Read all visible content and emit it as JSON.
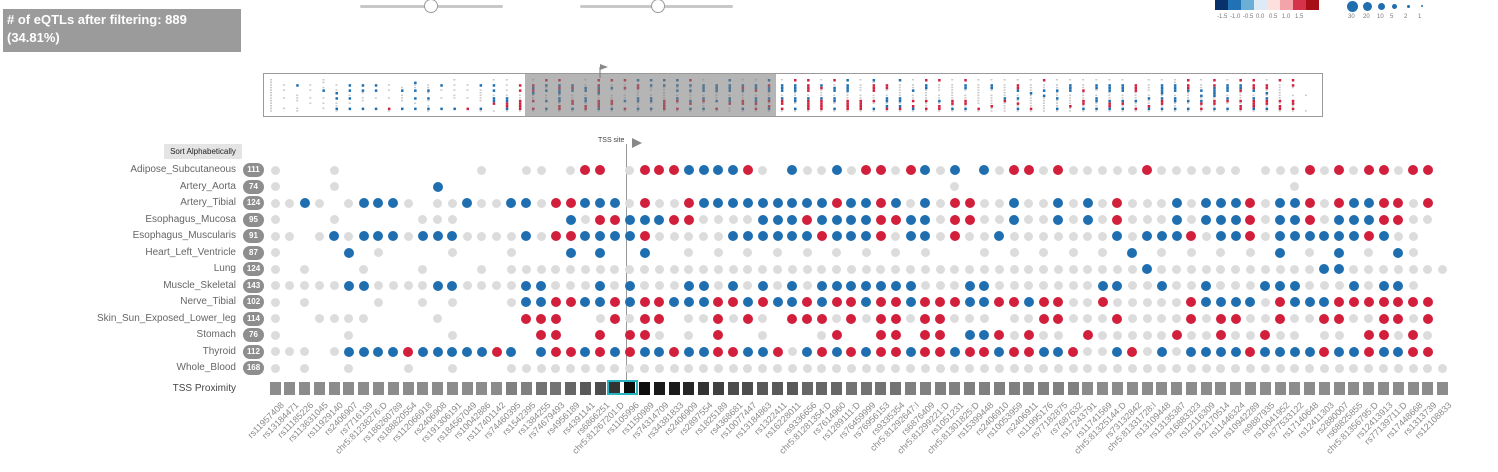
{
  "filter_summary": {
    "line1": "# of eQTLs after filtering: 889",
    "line2": "(34.81%)"
  },
  "sliders": [
    {
      "name": "range-slider-1",
      "value_fraction": 0.5
    },
    {
      "name": "range-slider-2",
      "value_fraction": 0.58
    }
  ],
  "color_legend": {
    "colors": [
      "#08306b",
      "#2171b5",
      "#6baed6",
      "#deebf7",
      "#fde0dd",
      "#f4a3a8",
      "#d6324a",
      "#a50f15"
    ],
    "ticks": [
      "-1.5",
      "-1.0",
      "-0.5",
      "0.0",
      "0.5",
      "1.0",
      "1.5"
    ]
  },
  "size_legend": {
    "labels": [
      "30",
      "20",
      "10",
      "5",
      "2",
      "1"
    ]
  },
  "sort_button_label": "Sort Alphabetically",
  "tss_label": "TSS site",
  "tss_row_label": "TSS Proximity",
  "tissues": [
    {
      "name": "Adipose_Subcutaneous",
      "count": "111"
    },
    {
      "name": "Artery_Aorta",
      "count": "74"
    },
    {
      "name": "Artery_Tibial",
      "count": "124"
    },
    {
      "name": "Esophagus_Mucosa",
      "count": "95"
    },
    {
      "name": "Esophagus_Muscularis",
      "count": "91"
    },
    {
      "name": "Heart_Left_Ventricle",
      "count": "87"
    },
    {
      "name": "Lung",
      "count": "124"
    },
    {
      "name": "Muscle_Skeletal",
      "count": "143"
    },
    {
      "name": "Nerve_Tibial",
      "count": "102"
    },
    {
      "name": "Skin_Sun_Exposed_Lower_leg",
      "count": "114"
    },
    {
      "name": "Stomach",
      "count": "76"
    },
    {
      "name": "Thyroid",
      "count": "112"
    },
    {
      "name": "Whole_Blood",
      "count": "168"
    }
  ],
  "snps": [
    "rs11957408",
    "rs13184471",
    "rs11185226",
    "rs113631045",
    "rs11929140",
    "rs2406907",
    "rs7716139",
    "chr5:81238276:D",
    "rs186260789",
    "rs188820554",
    "rs112066918",
    "rs2406908",
    "rs191306191",
    "rs184567049",
    "rs10042886",
    "rs117401142",
    "rs74460395",
    "rs1542395",
    "rs1384255",
    "rs74679493",
    "rs4956189",
    "rs4391141",
    "rs6866251",
    "chr5:81267201:D",
    "rs1105996",
    "rs1150989",
    "rs74314709",
    "rs34381833",
    "rs2406909",
    "rs2897554",
    "rs1825189",
    "rs4368681",
    "rs10077447",
    "rs13184863",
    "rs1322411",
    "rs16228011",
    "rs9336656",
    "chr5:81281354:D",
    "rs7614960",
    "rs1289111:D",
    "rs76459999",
    "rs76956153",
    "rs9335354",
    "chr5:81292647:I",
    "rs6876409",
    "chr5:81299221:D",
    "rs1051231",
    "chr5:81301825:D",
    "rs15399448",
    "rs2406910",
    "rs10053959",
    "rs2406911",
    "rs11995176",
    "rs77182875",
    "rs7687632",
    "rs17243791",
    "rs11741569",
    "chr5:81325144:D",
    "rs73132842",
    "chr5:81331728:I",
    "rs13109448",
    "rs13135387",
    "rs16883323",
    "rs12116309",
    "rs12170514",
    "rs11446324",
    "rs10942289",
    "rs9887935",
    "rs10041952",
    "rs77533122",
    "rs17140648",
    "rs12411303",
    "rs2880007",
    "rs68825855",
    "chr5:81356795:D",
    "rs12413913",
    "rs77139711:D",
    "rs17448668",
    "rs1313739",
    "rs12108833"
  ],
  "highlighted_snp_indices": [
    23,
    24
  ],
  "proximity_shade": [
    0.55,
    0.55,
    0.55,
    0.55,
    0.55,
    0.55,
    0.55,
    0.55,
    0.55,
    0.55,
    0.55,
    0.55,
    0.55,
    0.55,
    0.55,
    0.55,
    0.5,
    0.5,
    0.45,
    0.45,
    0.4,
    0.35,
    0.3,
    0.2,
    0.05,
    0.05,
    0.1,
    0.1,
    0.15,
    0.2,
    0.25,
    0.3,
    0.3,
    0.35,
    0.35,
    0.35,
    0.4,
    0.4,
    0.4,
    0.45,
    0.45,
    0.45,
    0.45,
    0.5,
    0.5,
    0.5,
    0.5,
    0.5,
    0.5,
    0.5,
    0.5,
    0.5,
    0.5,
    0.5,
    0.5,
    0.55,
    0.55,
    0.55,
    0.55,
    0.55,
    0.55,
    0.55,
    0.55,
    0.55,
    0.55,
    0.55,
    0.55,
    0.55,
    0.55,
    0.55,
    0.55,
    0.55,
    0.55,
    0.55,
    0.55,
    0.55,
    0.55,
    0.55,
    0.55,
    0.55
  ],
  "matrix": [
    "g...g.........g..gg.grr.grrrbbbbrg.bggbgrrgrbgb.bgrrgrgggggrgggggg.gggrgrgrrgrr",
    "g...g......b..................................g......................g.........",
    "ggbg.gbbbg.ggbggbbgrrbbbgrggrbbbbbbbbbrbbrbgbgrrggbggbgbgrgggbgbbbrgbbrgrbbrrgr",
    "g...g.....ggg.......bgrrbbbrrggggbbbrbbbbrrbbgrrggbggbgbgrgggbgbbbrgbbrgbbbrrgg",
    "gg.gbgbbbgbbbggggbgrrbbbbrgggggbbbbbbrbbbrgbbgrggbgggggggbgbbbrgbbrgbbbbbbrbgg",
    "g....b.g....g...g...b.b..b..g.g.g.g.g.g.g.g.g...g.g.g.g.g.b.g.g.g.g.b.g.b.g.bg",
    "g.g...g...g...g.gggggggggggggggggggggggggggggggggggggggggggbgggggggggggbbggggggg",
    "gggggbbggggbbggggbbgggbgbgggbbgbgbgbgbbbbbbbgggbbgggggggbbggbggbgggbbbgggbgbbg",
    "g.g....g..g.g...gbbrrbbrbrrbbbrrbrbbrbrrbrrbrrrbbrrbrrggrgggggrbbbbgrbbbrrrrrrr",
    "g..gggg....g.....rrr..grgrr.ggrgrg.rrrgrgrrgrrggg.ggrrgggrggggrgrrggrggrrggrrgr",
    "g....g......g.....rr..r.rrg.g.r..g...gr..rr.rr.bbrgrgg.rgggggrggrggrgg.gg.rrgrg",
    "ggg.gbbbbrbbbbbrb.brrbrbrbbrbbrrbbrgbrbrbrrbrrbrrbrrbbrggbrgbgbbbbrbbbbrbbrbbrr",
    "g.g..g...g..g...gggggggggggggggggggggggggggggggggggggggggggggggggggggggggggggggg"
  ]
}
